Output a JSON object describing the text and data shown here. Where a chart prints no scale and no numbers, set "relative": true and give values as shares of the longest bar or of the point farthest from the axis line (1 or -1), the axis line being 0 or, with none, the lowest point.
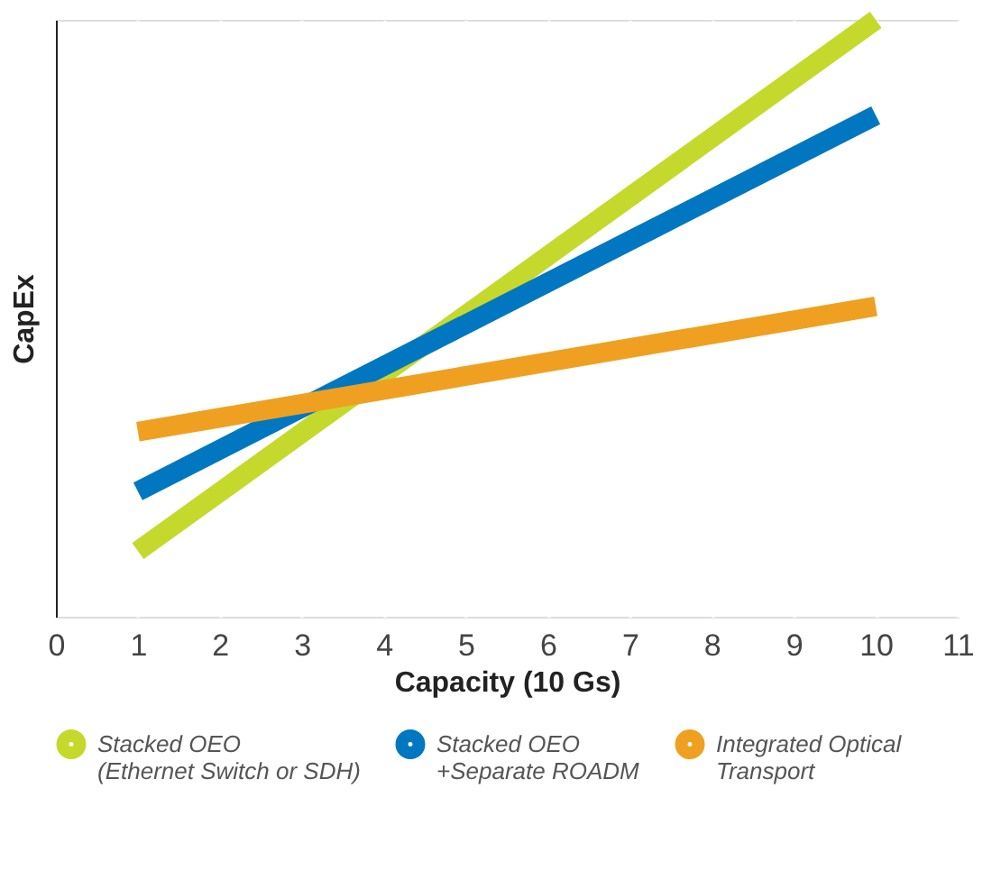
{
  "chart_data": {
    "type": "line",
    "xlabel": "Capacity (10 Gs)",
    "ylabel": "CapEx",
    "relative": true,
    "x": [
      1,
      10
    ],
    "xlim": [
      0,
      11
    ],
    "xticks": [
      0,
      1,
      2,
      3,
      4,
      5,
      6,
      7,
      8,
      9,
      10,
      11
    ],
    "grid": "x",
    "legend": "bottom",
    "series": [
      {
        "name": "Stacked OEO\n(Ethernet Switch or SDH)",
        "color": "#c5d92d",
        "values": [
          0.11,
          1
        ]
      },
      {
        "name": "Stacked OEO\n+Separate ROADM",
        "color": "#0077c0",
        "values": [
          0.21,
          0.84
        ]
      },
      {
        "name": "Integrated Optical\nTransport",
        "color": "#f0a020",
        "values": [
          0.31,
          0.52
        ]
      }
    ]
  }
}
